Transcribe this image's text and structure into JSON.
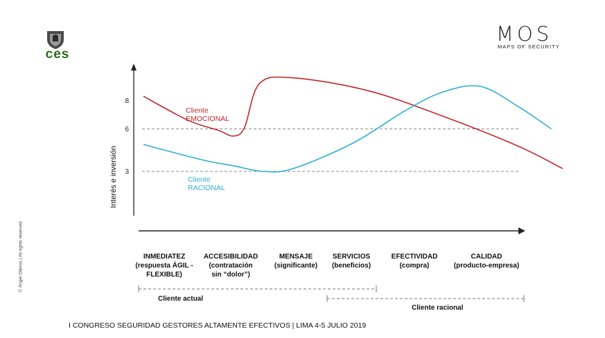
{
  "logos": {
    "left_text": "ces",
    "right_mark": "MOS",
    "right_sub": "MAPS OF SECURITY"
  },
  "copyright": "© Ángel Olleros | All rights reserved",
  "footer": "I CONGRESO SEGURIDAD GESTORES ALTAMENTE EFECTIVOS | LIMA 4-5 JULIO 2019",
  "chart_data": {
    "type": "line",
    "ylabel": "Interés e inversión",
    "yticks": [
      3,
      6,
      8
    ],
    "reference_lines": [
      6,
      3
    ],
    "categories": [
      {
        "lines": [
          "INMEDIATEZ",
          "(respuesta ÁGIL -",
          "FLEXIBLE)"
        ]
      },
      {
        "lines": [
          "ACCESIBILIDAD",
          "(contratación",
          "sin “dolor”)"
        ]
      },
      {
        "lines": [
          "MENSAJE",
          "(significante)"
        ]
      },
      {
        "lines": [
          "SERVICIOS",
          "(beneficios)"
        ]
      },
      {
        "lines": [
          "EFECTIVIDAD",
          "(compra)"
        ]
      },
      {
        "lines": [
          "CALIDAD",
          "(producto-empresa)"
        ]
      }
    ],
    "series": [
      {
        "label_lines": [
          "Cliente",
          "EMOCIONAL"
        ],
        "color": "#c0262c",
        "points": [
          [
            0,
            8.3
          ],
          [
            0.6,
            6.6
          ],
          [
            1.0,
            5.9
          ],
          [
            1.2,
            5.5
          ],
          [
            1.35,
            6.1
          ],
          [
            1.55,
            9.2
          ],
          [
            2.0,
            9.6
          ],
          [
            3.0,
            8.7
          ],
          [
            4.0,
            6.9
          ],
          [
            5.0,
            4.8
          ],
          [
            5.6,
            3.2
          ]
        ]
      },
      {
        "label_lines": [
          "Cliente",
          "RACIONAL"
        ],
        "color": "#2ab0cf",
        "points": [
          [
            0,
            4.9
          ],
          [
            0.8,
            3.8
          ],
          [
            1.2,
            3.4
          ],
          [
            1.6,
            3.0
          ],
          [
            2.0,
            3.2
          ],
          [
            2.8,
            5.0
          ],
          [
            3.5,
            7.3
          ],
          [
            4.0,
            8.6
          ],
          [
            4.5,
            9.0
          ],
          [
            5.0,
            7.6
          ],
          [
            5.45,
            6.0
          ]
        ]
      }
    ],
    "segments": [
      {
        "label": "Cliente actual"
      },
      {
        "label": "Cliente racional"
      }
    ]
  }
}
